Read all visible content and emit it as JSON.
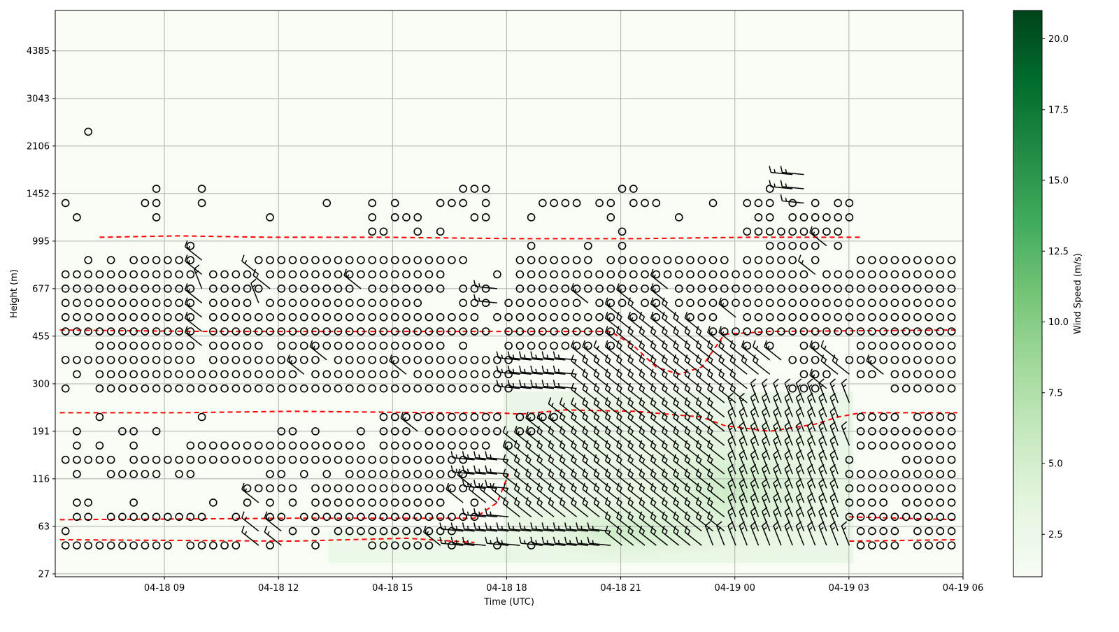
{
  "chart_data": {
    "type": "wind-barb time-height",
    "xlabel": "Time (UTC)",
    "ylabel": "Height (m)",
    "x_unit": "hours since 04-18 00 UTC",
    "xlim": [
      6.13,
      30.0
    ],
    "xticks": [
      {
        "t": 9,
        "label": "04-18 09"
      },
      {
        "t": 12,
        "label": "04-18 12"
      },
      {
        "t": 15,
        "label": "04-18 15"
      },
      {
        "t": 18,
        "label": "04-18 18"
      },
      {
        "t": 21,
        "label": "04-18 21"
      },
      {
        "t": 24,
        "label": "04-19 00"
      },
      {
        "t": 27,
        "label": "04-19 03"
      },
      {
        "t": 30,
        "label": "04-19 06"
      }
    ],
    "y_unit": "range gate index",
    "ylim": [
      -2.2,
      37.5
    ],
    "yticks": [
      {
        "gate": -2.0,
        "label": "27"
      },
      {
        "gate": 1.33,
        "label": "63"
      },
      {
        "gate": 4.67,
        "label": "116"
      },
      {
        "gate": 8.0,
        "label": "191"
      },
      {
        "gate": 11.33,
        "label": "300"
      },
      {
        "gate": 14.67,
        "label": "455"
      },
      {
        "gate": 18.0,
        "label": "677"
      },
      {
        "gate": 21.33,
        "label": "995"
      },
      {
        "gate": 24.67,
        "label": "1452"
      },
      {
        "gate": 28.0,
        "label": "2106"
      },
      {
        "gate": 31.33,
        "label": "3043"
      },
      {
        "gate": 34.67,
        "label": "4385"
      }
    ],
    "grid": true,
    "time_start_h": 6.4,
    "time_step_h": 0.2987,
    "symbol_legend": {
      "o": "calm",
      "w": "barb from W",
      "a": "barb from NW",
      "n": "barb from NNW"
    },
    "barb_speed_ms": 7.5,
    "rows": [
      {
        "gate": 0,
        "cells": "0-9o 11-15o 17a 18o 19a 22o 27-32o 33a 34o 35-37w 38o 39-40w 41o 42-48w 49-56a 57-69n 70-73o 75-78o"
      },
      {
        "gate": 1,
        "cells": "0o 17a 19a 20o 22o 24-34o 35-39w 40-48w 49-58a 59-68n 70-73o 75-78o"
      },
      {
        "gate": 2,
        "cells": "1-2o 4-12o 15o 18-19o 21-36o 37-39w 40-58a 59-68n 69-78o"
      },
      {
        "gate": 3,
        "cells": "1-2o 6o 13o 16o 17a 18o 20o 22-33o 35a 36o 37-39a 40-58a 59-68n 69-72o 74-78o"
      },
      {
        "gate": 4,
        "cells": "16-20o 22-35o 36a 37-39w 40-58a 59-68n 69-78o"
      },
      {
        "gate": 5,
        "cells": "1o 4-8o 10-11o 18-19o 21o 23o 25-35o 36-39w 40-58a 59-68n 69-78o"
      },
      {
        "gate": 6,
        "cells": "0-4o 6-35o 36-39w 40-58a 59-68n 69o 74-78o"
      },
      {
        "gate": 7,
        "cells": "1o 3o 6o 11-26o 28-37o 39o 40-58a 59-69n 70-78o"
      },
      {
        "gate": 8,
        "cells": "1o 5-6o 8o 19-20o 22o 26o 28-30o 31a 32-38o 40-41o 42-58a 59-68n 70-78o"
      },
      {
        "gate": 9,
        "cells": "3o 12o 28-38o 40-43o 44-58a 59-68n 70-73o 75-78o"
      },
      {
        "gate": 10,
        "cells": "46-60a 61-69n"
      },
      {
        "gate": 11,
        "cells": "0o 3-39o 40-45w 46-60a 64-66o 67a 73-78o"
      },
      {
        "gate": 12,
        "cells": "1o 3-20o 21a 22-29o 30a 31-39o 40-45w 46-62a 65-67o 68-69a 70-71o 72a 73-78o"
      },
      {
        "gate": 13,
        "cells": "0-11o 13-22o 23a 24-39o 40-45w 46-63a 64-66o 67-68a 69-78o"
      },
      {
        "gate": 14,
        "cells": "3-11o 12a 13-17o 19-33o 35o 39-46o 48o 49-59a 60o 62o 65-66o 70-78o"
      },
      {
        "gate": 15,
        "cells": "0-11o 12a 13-37o 39-48o 49-56a 57-78o"
      },
      {
        "gate": 16,
        "cells": "0-11o 12a 13-36o 38-48o 49a 50o 51a 52o 53-54a 55-57o 59a 60-78o"
      },
      {
        "gate": 17,
        "cells": "0-11o 12a 13-16o 17n 18-31o 35-37o 38w 39-45o 46a 47-49o 50a 51-52o 53a 54-78o"
      },
      {
        "gate": 18,
        "cells": "0-11o 12n 13-17o 18a 19-25o 26a 27-33o 35-37o 38w 40-52o 53a 54-78o"
      },
      {
        "gate": 19,
        "cells": "0-11o 12a 13-16o 17a 18-33o 38o 40-65o 66a 67-78o"
      },
      {
        "gate": 20,
        "cells": "2o 4o 6-11o 12a 17-35o 40-46o 48-58o 60-64o 66o 70-78o"
      },
      {
        "gate": 21,
        "cells": "11o 41o 46o 49o 62-66o 67a 68o"
      },
      {
        "gate": 22,
        "cells": "27-28o 31o 33o 49o 60-68o"
      },
      {
        "gate": 23,
        "cells": "1o 8o 18o 27o 29-31o 36-37o 41o 48o 54o 61-62o 64-69o"
      },
      {
        "gate": 24,
        "cells": "0o 7-8o 12o 23o 27o 29o 33-35o 37o 42-45o 47-48o 50-52o 57o 60-62o 64o 65w 66o 68-69o"
      },
      {
        "gate": 25,
        "cells": "8o 12o 35-37o 49-50o 62o 64-65w"
      },
      {
        "gate": 26,
        "cells": "64-65w"
      },
      {
        "gate": 29,
        "cells": "2o"
      }
    ],
    "contours": [
      [
        [
          -0.5,
          15.1
        ],
        [
          12,
          15
        ],
        [
          20,
          15
        ],
        [
          30,
          15
        ],
        [
          40,
          15
        ],
        [
          48,
          15
        ],
        [
          50,
          14
        ],
        [
          52,
          12.5
        ],
        [
          54,
          12
        ],
        [
          56,
          12.5
        ],
        [
          58,
          14.8
        ],
        [
          62,
          15
        ],
        [
          78.5,
          15.1
        ]
      ],
      [
        [
          -0.5,
          9.3
        ],
        [
          10,
          9.3
        ],
        [
          20,
          9.4
        ],
        [
          33,
          9.3
        ],
        [
          38,
          9.3
        ],
        [
          40,
          9.2
        ],
        [
          44,
          9.5
        ],
        [
          50,
          9.4
        ],
        [
          56,
          9
        ],
        [
          58,
          8.4
        ],
        [
          62,
          8
        ],
        [
          66,
          8.5
        ],
        [
          68,
          9
        ],
        [
          70,
          9.3
        ],
        [
          78.5,
          9.3
        ]
      ],
      [
        [
          -0.5,
          1.8
        ],
        [
          20,
          1.9
        ],
        [
          36,
          1.9
        ],
        [
          38,
          3
        ],
        [
          39,
          5
        ]
      ],
      [
        [
          69,
          2
        ],
        [
          78.5,
          1.8
        ]
      ],
      [
        [
          -0.5,
          0.4
        ],
        [
          20,
          0.3
        ],
        [
          30,
          0.5
        ],
        [
          36,
          0.2
        ]
      ],
      [
        [
          69,
          0.3
        ],
        [
          78.5,
          0.4
        ]
      ],
      [
        [
          3,
          21.6
        ],
        [
          10,
          21.7
        ],
        [
          18,
          21.6
        ],
        [
          28,
          21.6
        ],
        [
          40,
          21.5
        ],
        [
          50,
          21.5
        ],
        [
          60,
          21.6
        ],
        [
          70,
          21.6
        ]
      ]
    ],
    "colorbar": {
      "label": "Wind Speed (m/s)",
      "range": [
        1,
        21
      ],
      "cmap": [
        "#f7fcf5",
        "#e5f5e0",
        "#c7e9c0",
        "#a1d99b",
        "#74c476",
        "#41ab5d",
        "#238b45",
        "#006d2c",
        "#00441b"
      ],
      "ticks": [
        {
          "v": 2.5,
          "label": "2.5"
        },
        {
          "v": 5.0,
          "label": "5.0"
        },
        {
          "v": 7.5,
          "label": "7.5"
        },
        {
          "v": 10.0,
          "label": "10.0"
        },
        {
          "v": 12.5,
          "label": "12.5"
        },
        {
          "v": 15.0,
          "label": "15.0"
        },
        {
          "v": 17.5,
          "label": "17.5"
        },
        {
          "v": 20.0,
          "label": "20.0"
        }
      ]
    },
    "colors": {
      "background": "#f7fcf5",
      "grid": "#b0b0b0",
      "contour": "#ff0000",
      "symbol": "#000000"
    }
  }
}
